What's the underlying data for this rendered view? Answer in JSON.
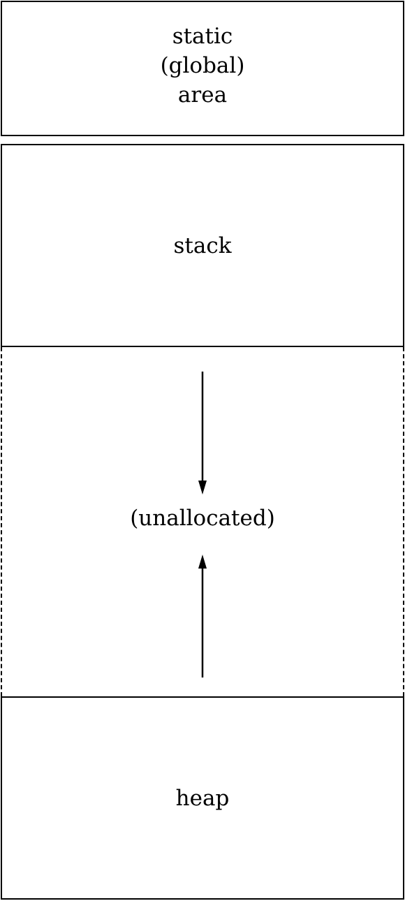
{
  "diagram": {
    "regions": {
      "static": {
        "label": "static\n(global)\narea"
      },
      "stack": {
        "label": "stack"
      },
      "unallocated": {
        "label": "(unallocated)"
      },
      "heap": {
        "label": "heap"
      }
    },
    "arrows": [
      {
        "from": "stack",
        "direction": "down"
      },
      {
        "from": "heap",
        "direction": "up"
      }
    ],
    "colors": {
      "stroke": "#000000",
      "background": "#ffffff"
    }
  }
}
